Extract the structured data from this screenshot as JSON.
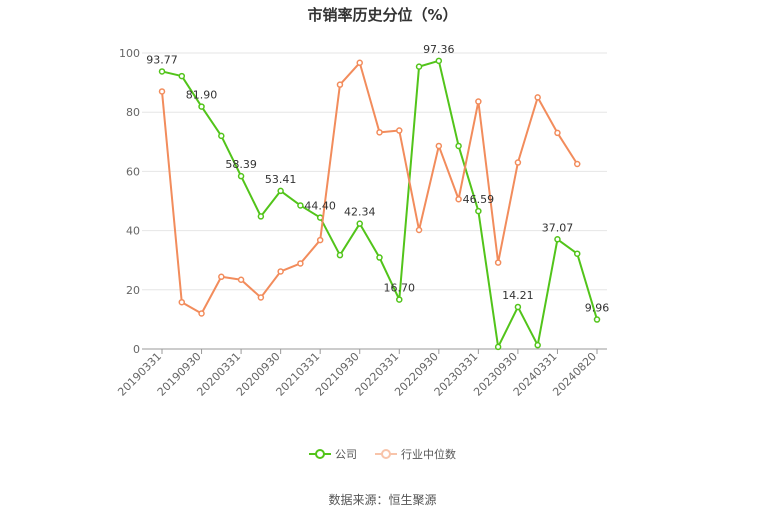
{
  "title": "市销率历史分位（%）",
  "source": "数据来源：恒生聚源",
  "legend": [
    {
      "name": "公司",
      "color": "#52c41a"
    },
    {
      "name": "行业中位数",
      "color": "#f28c5c"
    }
  ],
  "chart_data": {
    "type": "line",
    "title": "市销率历史分位（%）",
    "xlabel": "",
    "ylabel": "",
    "ylim": [
      0,
      100
    ],
    "yticks": [
      0,
      20,
      40,
      60,
      80,
      100
    ],
    "grid": true,
    "legend_position": "bottom",
    "x": [
      "20190331",
      "20190630",
      "20190930",
      "20191231",
      "20200331",
      "20200630",
      "20200930",
      "20201231",
      "20210331",
      "20210630",
      "20210930",
      "20211231",
      "20220331",
      "20220630",
      "20220930",
      "20221231",
      "20230331",
      "20230630",
      "20230930",
      "20231231",
      "20240331",
      "20240630",
      "20240820"
    ],
    "x_tick_labels": [
      "20190331",
      "20190930",
      "20200331",
      "20200930",
      "20210331",
      "20210930",
      "20220331",
      "20220930",
      "20230331",
      "20230930",
      "20240331",
      "20240820"
    ],
    "series": [
      {
        "name": "公司",
        "color": "#52c41a",
        "values": [
          93.77,
          92.2,
          81.9,
          72.0,
          58.39,
          44.8,
          53.41,
          48.5,
          44.4,
          31.7,
          42.34,
          30.9,
          16.7,
          95.4,
          97.36,
          68.6,
          46.59,
          0.7,
          14.21,
          1.3,
          37.07,
          32.2,
          9.96
        ],
        "labels": [
          "93.77",
          "",
          "81.90",
          "",
          "58.39",
          "",
          "53.41",
          "",
          "44.40",
          "",
          "42.34",
          "",
          "16.70",
          "",
          "97.36",
          "",
          "46.59",
          "",
          "14.21",
          "",
          "37.07",
          "",
          "9.96"
        ]
      },
      {
        "name": "行业中位数",
        "color": "#f28c5c",
        "values": [
          87.0,
          15.8,
          12.0,
          24.4,
          23.4,
          17.4,
          26.2,
          28.9,
          36.8,
          89.3,
          96.7,
          73.2,
          73.8,
          40.2,
          68.6,
          50.6,
          83.6,
          29.2,
          63.0,
          85.0,
          73.0,
          62.5,
          null
        ]
      }
    ]
  }
}
